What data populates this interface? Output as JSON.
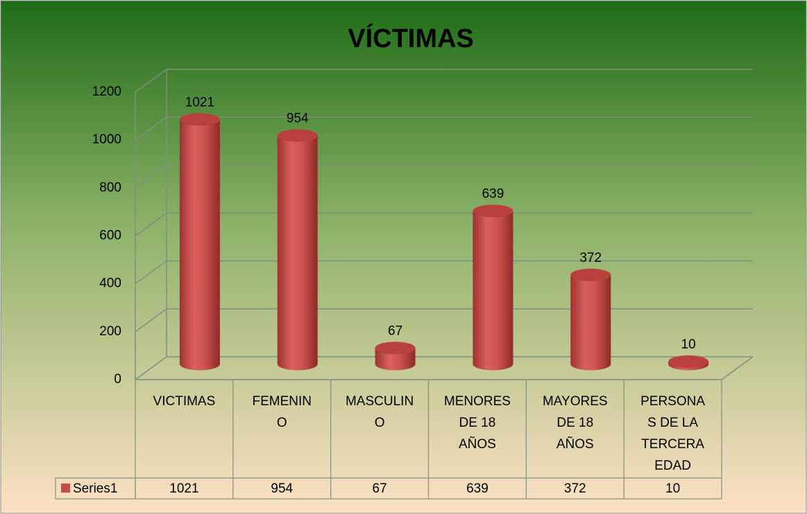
{
  "chart_data": {
    "type": "bar3d",
    "title": "VÍCTIMAS",
    "categories": [
      "VICTIMAS",
      "FEMENINO",
      "MASCULINO",
      "MENORES DE 18 AÑOS",
      "MAYORES DE 18 AÑOS",
      "PERSONAS DE LA TERCERA EDAD"
    ],
    "series": [
      {
        "name": "Series1",
        "color": "#c0504d",
        "values": [
          1021,
          954,
          67,
          639,
          372,
          10
        ]
      }
    ],
    "ylim": [
      0,
      1200
    ],
    "yticks": [
      0,
      200,
      400,
      600,
      800,
      1000,
      1200
    ],
    "grid": true,
    "data_table": true
  }
}
